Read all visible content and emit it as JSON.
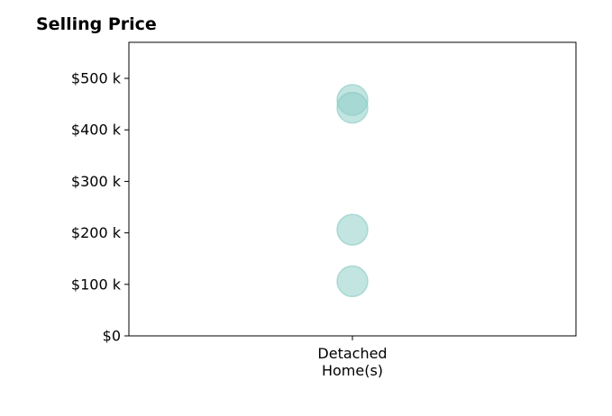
{
  "chart_data": {
    "type": "scatter",
    "title": "Selling Price",
    "xlabel": "",
    "ylabel": "",
    "categories": [
      [
        "Detached",
        "Home(s)"
      ]
    ],
    "series": [
      {
        "category_index": 0,
        "values": [
          458000,
          443000,
          206000,
          106000
        ]
      }
    ],
    "ylim": [
      0,
      570000
    ],
    "yticks": [
      0,
      100000,
      200000,
      300000,
      400000,
      500000
    ],
    "ytick_labels": [
      "$0",
      "$100 k",
      "$200 k",
      "$300 k",
      "$400 k",
      "$500 k"
    ],
    "grid": false,
    "legend": "none",
    "marker_color": "#8fcfc8",
    "marker_edge_color": "#7fc4bd",
    "marker_opacity": 0.55
  }
}
